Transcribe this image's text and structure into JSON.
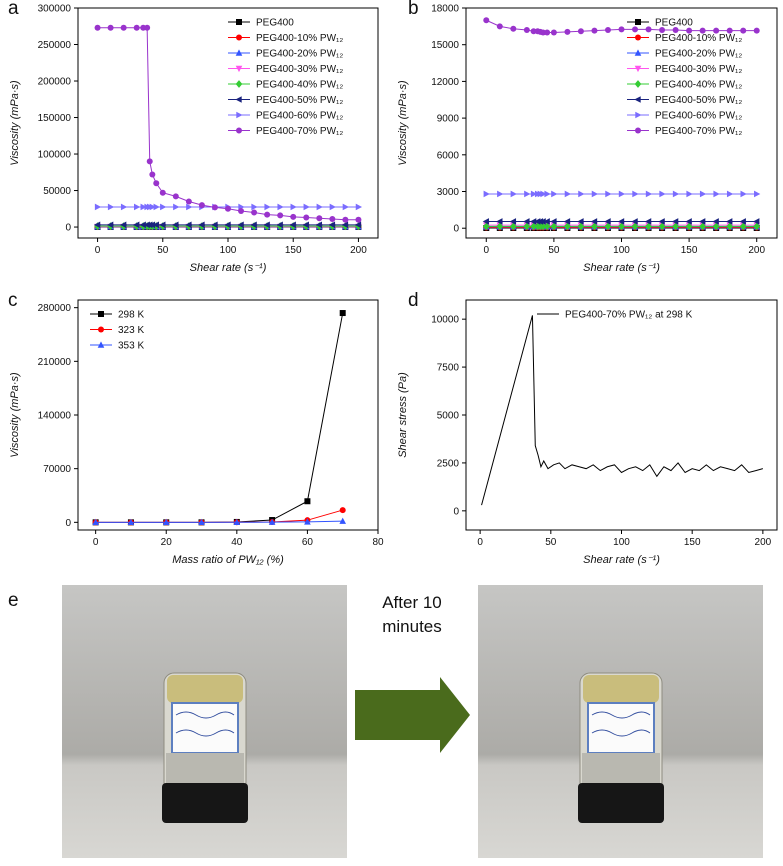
{
  "chart_data": [
    {
      "type": "line",
      "panel_label": "a",
      "xlabel": "Shear rate (s⁻¹)",
      "ylabel": "Viscosity (mPa·s)",
      "x": [
        0,
        10,
        20,
        30,
        35,
        38,
        40,
        42,
        45,
        50,
        60,
        70,
        80,
        90,
        100,
        110,
        120,
        130,
        140,
        150,
        160,
        170,
        180,
        190,
        200
      ],
      "xlim": [
        -15,
        215
      ],
      "xticks": [
        0,
        50,
        100,
        150,
        200
      ],
      "ylim": [
        -15000,
        300000
      ],
      "yticks": [
        0,
        50000,
        100000,
        150000,
        200000,
        250000,
        300000
      ],
      "legend": "upper right",
      "series": [
        {
          "name": "PEG400",
          "color": "#000000",
          "marker": "square",
          "values": [
            100,
            100,
            100,
            100,
            100,
            100,
            100,
            100,
            100,
            100,
            100,
            100,
            100,
            100,
            100,
            100,
            100,
            100,
            100,
            100,
            100,
            100,
            100,
            100,
            100
          ]
        },
        {
          "name": "PEG400-10% PW₁₂",
          "color": "#ff0000",
          "marker": "circle",
          "values": [
            200,
            200,
            200,
            200,
            200,
            200,
            200,
            200,
            200,
            200,
            200,
            200,
            200,
            200,
            200,
            200,
            200,
            200,
            200,
            200,
            200,
            200,
            200,
            200,
            200
          ]
        },
        {
          "name": "PEG400-20% PW₁₂",
          "color": "#3355ff",
          "marker": "up",
          "values": [
            400,
            400,
            400,
            400,
            400,
            400,
            400,
            400,
            400,
            400,
            400,
            400,
            400,
            400,
            400,
            400,
            400,
            400,
            400,
            400,
            400,
            400,
            400,
            400,
            400
          ]
        },
        {
          "name": "PEG400-30% PW₁₂",
          "color": "#ff55ee",
          "marker": "down",
          "values": [
            700,
            700,
            700,
            700,
            700,
            700,
            700,
            700,
            700,
            700,
            700,
            700,
            700,
            700,
            700,
            700,
            700,
            700,
            700,
            700,
            700,
            700,
            700,
            700,
            700
          ]
        },
        {
          "name": "PEG400-40% PW₁₂",
          "color": "#33cc33",
          "marker": "diamond",
          "values": [
            1200,
            1200,
            1200,
            1200,
            1200,
            1200,
            1200,
            1200,
            1200,
            1200,
            1200,
            1200,
            1200,
            1200,
            1200,
            1200,
            1200,
            1200,
            1200,
            1200,
            1200,
            1200,
            1200,
            1200,
            1200
          ]
        },
        {
          "name": "PEG400-50% PW₁₂",
          "color": "#1a237e",
          "marker": "left",
          "values": [
            3000,
            3000,
            3000,
            3000,
            3000,
            3000,
            3000,
            3000,
            3000,
            3000,
            3000,
            3000,
            3000,
            3000,
            3000,
            3000,
            3000,
            3000,
            3000,
            3000,
            3000,
            3000,
            3000,
            3000,
            3000
          ]
        },
        {
          "name": "PEG400-60% PW₁₂",
          "color": "#7a6cff",
          "marker": "right",
          "values": [
            27500,
            27500,
            27500,
            27500,
            27500,
            27500,
            27500,
            27500,
            27500,
            27500,
            27500,
            27500,
            27500,
            27500,
            27500,
            27500,
            27500,
            27500,
            27500,
            27500,
            27500,
            27500,
            27500,
            27500,
            27500
          ]
        },
        {
          "name": "PEG400-70% PW₁₂",
          "color": "#9933cc",
          "marker": "circle",
          "values": [
            273000,
            273000,
            273000,
            273000,
            273000,
            273000,
            90000,
            72000,
            60000,
            47000,
            42000,
            35000,
            30000,
            27000,
            25000,
            22000,
            20000,
            17000,
            16000,
            14000,
            13000,
            12000,
            11000,
            10000,
            10000
          ]
        }
      ]
    },
    {
      "type": "line",
      "panel_label": "b",
      "xlabel": "Shear rate (s⁻¹)",
      "ylabel": "Viscosity (mPa·s)",
      "x": [
        0,
        10,
        20,
        30,
        35,
        38,
        40,
        42,
        45,
        50,
        60,
        70,
        80,
        90,
        100,
        110,
        120,
        130,
        140,
        150,
        160,
        170,
        180,
        190,
        200
      ],
      "xlim": [
        -15,
        215
      ],
      "xticks": [
        0,
        50,
        100,
        150,
        200
      ],
      "ylim": [
        -800,
        18000
      ],
      "yticks": [
        0,
        3000,
        6000,
        9000,
        12000,
        15000,
        18000
      ],
      "legend": "upper right",
      "series": [
        {
          "name": "PEG400",
          "color": "#000000",
          "marker": "square",
          "values": [
            20,
            20,
            20,
            20,
            20,
            20,
            20,
            20,
            20,
            20,
            20,
            20,
            20,
            20,
            20,
            20,
            20,
            20,
            20,
            20,
            20,
            20,
            20,
            20,
            20
          ]
        },
        {
          "name": "PEG400-10% PW₁₂",
          "color": "#ff0000",
          "marker": "circle",
          "values": [
            60,
            60,
            60,
            60,
            60,
            60,
            60,
            60,
            60,
            60,
            60,
            60,
            60,
            60,
            60,
            60,
            60,
            60,
            60,
            60,
            60,
            60,
            60,
            60,
            60
          ]
        },
        {
          "name": "PEG400-20% PW₁₂",
          "color": "#3355ff",
          "marker": "up",
          "values": [
            120,
            120,
            120,
            120,
            120,
            120,
            120,
            120,
            120,
            120,
            120,
            120,
            120,
            120,
            120,
            120,
            120,
            120,
            120,
            120,
            120,
            120,
            120,
            120,
            120
          ]
        },
        {
          "name": "PEG400-30% PW₁₂",
          "color": "#ff55ee",
          "marker": "down",
          "values": [
            250,
            250,
            250,
            250,
            250,
            250,
            250,
            250,
            250,
            250,
            250,
            250,
            250,
            250,
            250,
            250,
            250,
            250,
            250,
            250,
            250,
            250,
            250,
            250,
            250
          ]
        },
        {
          "name": "PEG400-40% PW₁₂",
          "color": "#33cc33",
          "marker": "diamond",
          "values": [
            150,
            150,
            150,
            150,
            150,
            150,
            150,
            150,
            150,
            150,
            150,
            150,
            150,
            150,
            150,
            150,
            150,
            150,
            150,
            150,
            150,
            150,
            150,
            150,
            150
          ]
        },
        {
          "name": "PEG400-50% PW₁₂",
          "color": "#1a237e",
          "marker": "left",
          "values": [
            550,
            550,
            550,
            550,
            550,
            550,
            550,
            550,
            550,
            550,
            550,
            550,
            550,
            550,
            550,
            550,
            550,
            550,
            550,
            550,
            550,
            550,
            550,
            550,
            550
          ]
        },
        {
          "name": "PEG400-60% PW₁₂",
          "color": "#7a6cff",
          "marker": "right",
          "values": [
            2800,
            2800,
            2800,
            2800,
            2800,
            2800,
            2800,
            2800,
            2800,
            2800,
            2800,
            2800,
            2800,
            2800,
            2800,
            2800,
            2800,
            2800,
            2800,
            2800,
            2800,
            2800,
            2800,
            2800,
            2800
          ]
        },
        {
          "name": "PEG400-70% PW₁₂",
          "color": "#9933cc",
          "marker": "circle",
          "values": [
            17000,
            16500,
            16300,
            16200,
            16100,
            16100,
            16050,
            16000,
            16000,
            16000,
            16050,
            16100,
            16150,
            16200,
            16250,
            16250,
            16250,
            16200,
            16200,
            16150,
            16150,
            16150,
            16150,
            16150,
            16150
          ]
        }
      ]
    },
    {
      "type": "line",
      "panel_label": "c",
      "xlabel": "Mass ratio of PW₁₂ (%)",
      "ylabel": "Viscosity (mPa·s)",
      "x": [
        0,
        10,
        20,
        30,
        40,
        50,
        60,
        70
      ],
      "xlim": [
        -5,
        80
      ],
      "xticks": [
        0,
        20,
        40,
        60,
        80
      ],
      "ylim": [
        -10000,
        290000
      ],
      "yticks": [
        0,
        70000,
        140000,
        210000,
        280000
      ],
      "legend": "upper left",
      "series": [
        {
          "name": "298 K",
          "color": "#000000",
          "marker": "square",
          "values": [
            0,
            0,
            0,
            0,
            500,
            3000,
            27500,
            273000
          ]
        },
        {
          "name": "323 K",
          "color": "#ff0000",
          "marker": "circle",
          "values": [
            0,
            0,
            0,
            0,
            100,
            500,
            2800,
            16000
          ]
        },
        {
          "name": "353 K",
          "color": "#3355ff",
          "marker": "up",
          "values": [
            0,
            0,
            0,
            0,
            50,
            200,
            600,
            1500
          ]
        }
      ]
    },
    {
      "type": "line",
      "panel_label": "d",
      "xlabel": "Shear rate (s⁻¹)",
      "ylabel": "Shear stress (Pa)",
      "x": [
        1,
        37,
        39,
        41,
        43,
        45,
        48,
        52,
        56,
        60,
        65,
        70,
        75,
        80,
        85,
        90,
        95,
        100,
        105,
        110,
        115,
        120,
        125,
        130,
        135,
        140,
        145,
        150,
        155,
        160,
        165,
        170,
        175,
        180,
        185,
        190,
        195,
        200
      ],
      "xlim": [
        -10,
        210
      ],
      "xticks": [
        0,
        50,
        100,
        150,
        200
      ],
      "ylim": [
        -1000,
        11000
      ],
      "yticks": [
        0,
        2500,
        5000,
        7500,
        10000
      ],
      "legend": "upper right",
      "series": [
        {
          "name": "PEG400-70% PW₁₂ at 298 K",
          "color": "#000000",
          "values": [
            300,
            10200,
            3400,
            2900,
            2300,
            2600,
            2200,
            2400,
            2500,
            2200,
            2400,
            2300,
            2200,
            2400,
            2100,
            2300,
            2400,
            2000,
            2200,
            2300,
            2100,
            2400,
            1800,
            2300,
            2100,
            2500,
            2000,
            2200,
            2100,
            2400,
            2100,
            2300,
            2200,
            2100,
            2400,
            2000,
            2100,
            2200
          ]
        }
      ]
    }
  ],
  "photo_panel": {
    "label": "e",
    "arrow_text": [
      "After 10",
      "minutes"
    ]
  }
}
